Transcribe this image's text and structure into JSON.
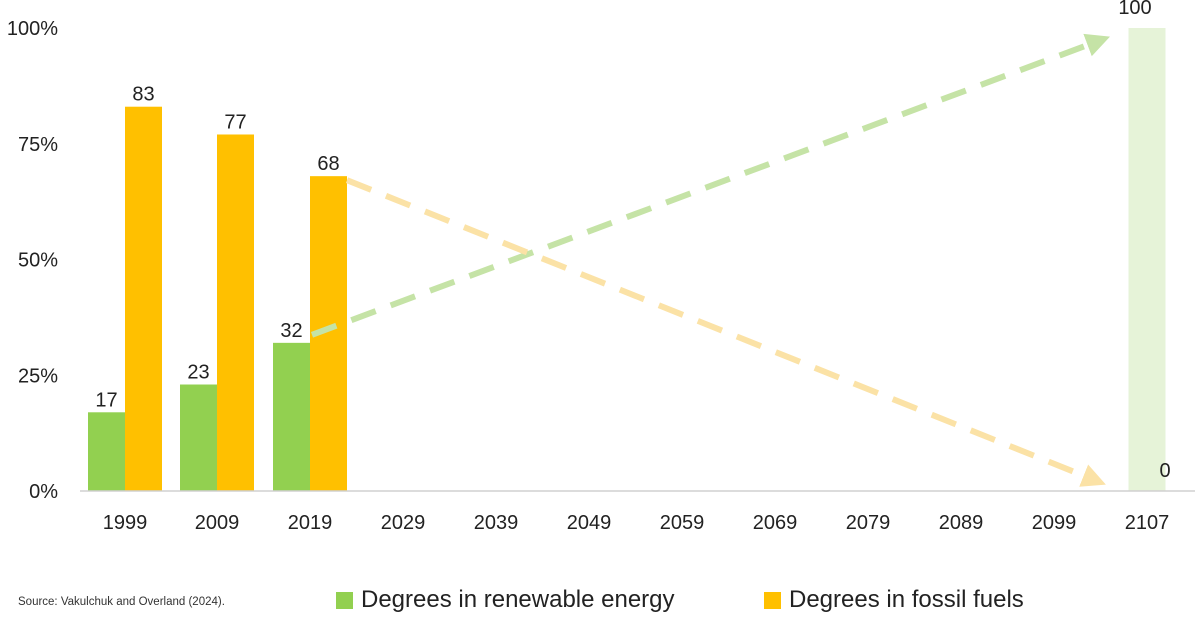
{
  "chart_data": {
    "type": "bar",
    "categories": [
      "1999",
      "2009",
      "2019",
      "2029",
      "2039",
      "2049",
      "2059",
      "2069",
      "2079",
      "2089",
      "2099",
      "2107"
    ],
    "yticks": [
      "0%",
      "25%",
      "50%",
      "75%",
      "100%"
    ],
    "ylim": [
      0,
      100
    ],
    "series": [
      {
        "name": "Degrees in renewable energy",
        "color": "#92d050",
        "values": [
          17,
          23,
          32,
          null,
          null,
          null,
          null,
          null,
          null,
          null,
          null,
          100
        ],
        "labels": [
          "17",
          "23",
          "32",
          "",
          "",
          "",
          "",
          "",
          "",
          "",
          "",
          "100"
        ]
      },
      {
        "name": "Degrees in fossil fuels",
        "color": "#ffc000",
        "values": [
          83,
          77,
          68,
          null,
          null,
          null,
          null,
          null,
          null,
          null,
          null,
          0
        ],
        "labels": [
          "83",
          "77",
          "68",
          "",
          "",
          "",
          "",
          "",
          "",
          "",
          "",
          "0"
        ]
      }
    ],
    "projection_colors": {
      "renewable": "#c5e3a6",
      "fossil": "#fbe2a6",
      "renewable_bar": "#e6f3d8"
    },
    "grid": false,
    "legend_position": "bottom"
  },
  "source": "Source: Vakulchuk and Overland (2024).",
  "legend": {
    "renewable": "Degrees in renewable energy",
    "fossil": "Degrees in fossil fuels"
  }
}
